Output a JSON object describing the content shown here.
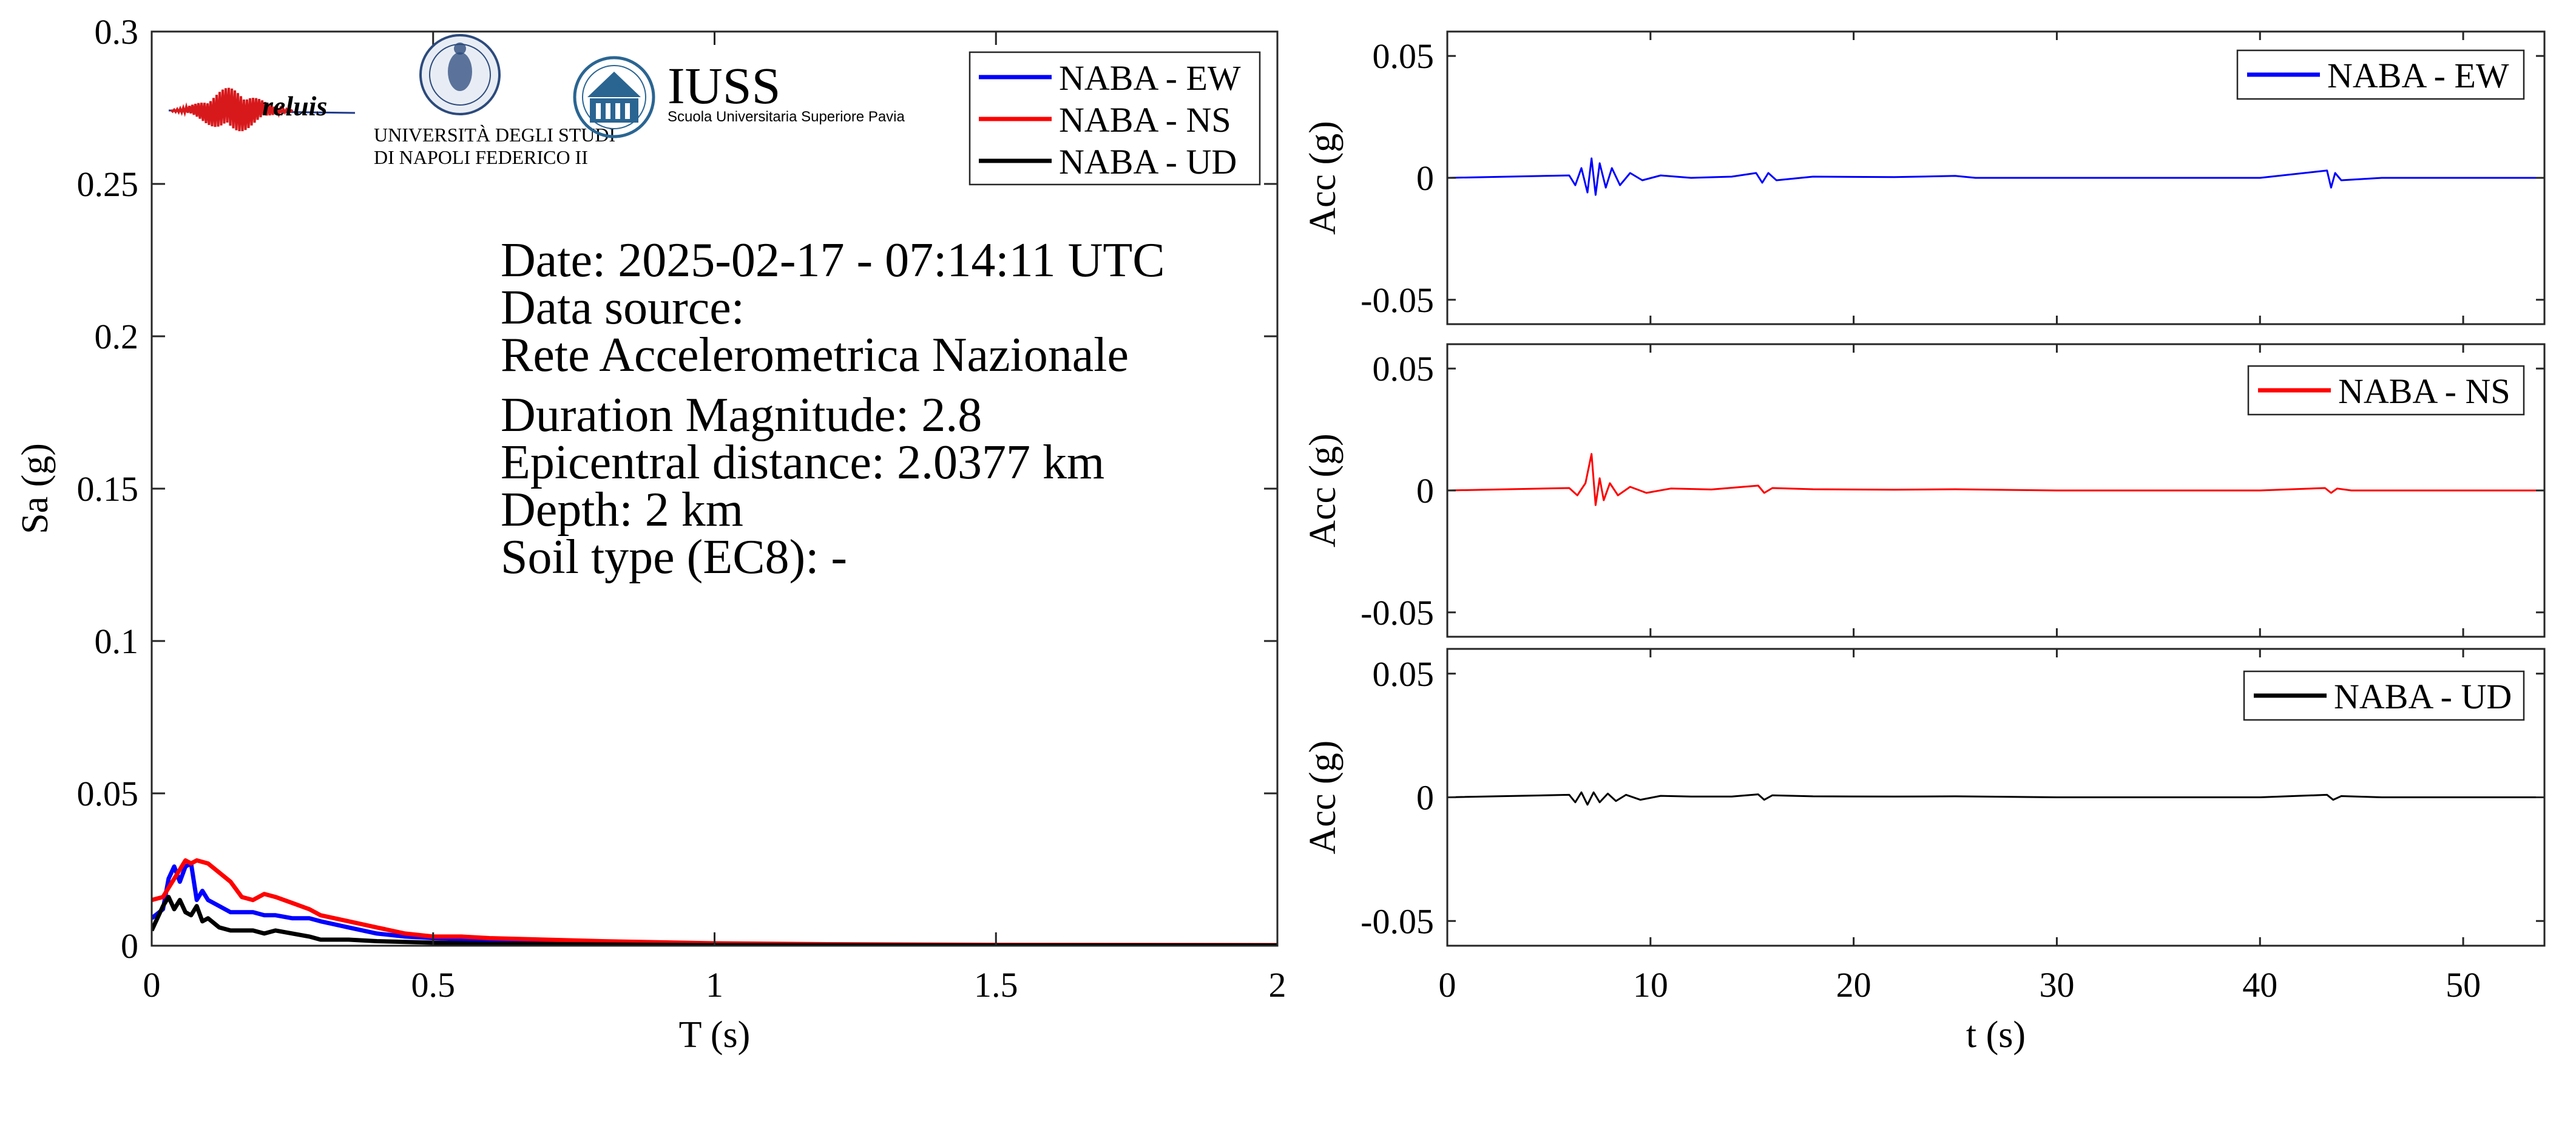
{
  "logos": {
    "reluis_text": "reluis",
    "unina_line1": "UNIVERSITÀ DEGLI STUDI",
    "unina_line2": "DI NAPOLI FEDERICO II",
    "iuss_title": "IUSS",
    "iuss_subtitle": "Scuola Universitaria Superiore Pavia",
    "colors": {
      "reluis_red": "#d7191c",
      "reluis_blue": "#1f3b8c",
      "unina_blue": "#2c4a7c",
      "iuss_blue": "#2a6592"
    }
  },
  "info": {
    "date": "Date: 2025-02-17 - 07:14:11 UTC",
    "source_label": "Data source:",
    "source_name": "Rete Accelerometrica Nazionale",
    "magnitude": "Duration Magnitude: 2.8",
    "distance": "Epicentral distance: 2.0377 km",
    "depth": "Depth: 2 km",
    "soil": "Soil type (EC8): -"
  },
  "chart_data": [
    {
      "id": "spectrum",
      "type": "line",
      "xlabel": "T (s)",
      "ylabel": "Sa (g)",
      "xlim": [
        0,
        2
      ],
      "ylim": [
        0,
        0.3
      ],
      "xticks": [
        0,
        0.5,
        1,
        1.5,
        2
      ],
      "xtick_labels": [
        "0",
        "0.5",
        "1",
        "1.5",
        "2"
      ],
      "yticks": [
        0,
        0.05,
        0.1,
        0.15,
        0.2,
        0.25,
        0.3
      ],
      "ytick_labels": [
        "0",
        "0.05",
        "0.1",
        "0.15",
        "0.2",
        "0.25",
        "0.3"
      ],
      "grid": false,
      "legend": "top-right",
      "series": [
        {
          "name": "NABA - EW",
          "color": "#0000ff",
          "x": [
            0,
            0.02,
            0.03,
            0.04,
            0.05,
            0.06,
            0.07,
            0.08,
            0.09,
            0.1,
            0.12,
            0.14,
            0.16,
            0.18,
            0.2,
            0.22,
            0.25,
            0.28,
            0.3,
            0.35,
            0.4,
            0.45,
            0.5,
            0.6,
            0.7,
            0.8,
            1.0,
            1.2,
            1.5,
            2.0
          ],
          "y": [
            0.009,
            0.012,
            0.022,
            0.026,
            0.021,
            0.026,
            0.027,
            0.015,
            0.018,
            0.015,
            0.013,
            0.011,
            0.011,
            0.011,
            0.01,
            0.01,
            0.009,
            0.009,
            0.008,
            0.006,
            0.004,
            0.003,
            0.0025,
            0.0018,
            0.0012,
            0.0009,
            0.0005,
            0.0003,
            0.0002,
            0.0001
          ]
        },
        {
          "name": "NABA - NS",
          "color": "#ff0000",
          "x": [
            0,
            0.02,
            0.03,
            0.04,
            0.05,
            0.06,
            0.07,
            0.08,
            0.1,
            0.12,
            0.14,
            0.16,
            0.18,
            0.2,
            0.22,
            0.25,
            0.28,
            0.3,
            0.35,
            0.4,
            0.45,
            0.5,
            0.55,
            0.6,
            0.7,
            0.8,
            1.0,
            1.2,
            1.5,
            2.0
          ],
          "y": [
            0.015,
            0.016,
            0.019,
            0.022,
            0.025,
            0.028,
            0.027,
            0.028,
            0.027,
            0.024,
            0.021,
            0.016,
            0.015,
            0.017,
            0.016,
            0.014,
            0.012,
            0.01,
            0.008,
            0.006,
            0.004,
            0.003,
            0.003,
            0.0025,
            0.002,
            0.0015,
            0.0008,
            0.0005,
            0.0003,
            0.0002
          ]
        },
        {
          "name": "NABA - UD",
          "color": "#000000",
          "x": [
            0,
            0.01,
            0.02,
            0.03,
            0.04,
            0.05,
            0.06,
            0.07,
            0.08,
            0.09,
            0.1,
            0.12,
            0.14,
            0.16,
            0.18,
            0.2,
            0.22,
            0.25,
            0.28,
            0.3,
            0.35,
            0.4,
            0.5,
            0.6,
            0.8,
            1.0,
            1.5,
            2.0
          ],
          "y": [
            0.005,
            0.009,
            0.013,
            0.016,
            0.012,
            0.015,
            0.011,
            0.01,
            0.013,
            0.008,
            0.009,
            0.006,
            0.005,
            0.005,
            0.005,
            0.004,
            0.005,
            0.004,
            0.003,
            0.002,
            0.002,
            0.0015,
            0.001,
            0.0007,
            0.0004,
            0.0002,
            0.0001,
            0.0001
          ]
        }
      ]
    },
    {
      "id": "ew",
      "type": "line",
      "xlabel": "",
      "ylabel": "Acc (g)",
      "xlim": [
        0,
        54
      ],
      "ylim": [
        -0.06,
        0.06
      ],
      "xticks": [
        0,
        10,
        20,
        30,
        40,
        50
      ],
      "xtick_labels": [],
      "yticks": [
        -0.05,
        0,
        0.05
      ],
      "ytick_labels": [
        "-0.05",
        "0",
        "0.05"
      ],
      "legend": "top-right",
      "series": [
        {
          "name": "NABA - EW",
          "color": "#0000ff",
          "x": [
            0,
            6.0,
            6.3,
            6.6,
            6.9,
            7.1,
            7.3,
            7.5,
            7.8,
            8.1,
            8.5,
            9.0,
            9.6,
            10.5,
            12,
            14,
            15.2,
            15.5,
            15.8,
            16.2,
            18,
            22,
            25,
            26,
            30,
            40,
            43.3,
            43.5,
            43.7,
            44,
            46,
            54
          ],
          "y": [
            0,
            0.001,
            -0.003,
            0.004,
            -0.006,
            0.008,
            -0.007,
            0.006,
            -0.004,
            0.004,
            -0.003,
            0.002,
            -0.001,
            0.001,
            0,
            0.0005,
            0.002,
            -0.002,
            0.002,
            -0.001,
            0.0005,
            0.0003,
            0.0008,
            0,
            0,
            0,
            0.003,
            -0.004,
            0.002,
            -0.001,
            0,
            0
          ]
        }
      ]
    },
    {
      "id": "ns",
      "type": "line",
      "xlabel": "",
      "ylabel": "Acc (g)",
      "xlim": [
        0,
        54
      ],
      "ylim": [
        -0.06,
        0.06
      ],
      "xticks": [
        0,
        10,
        20,
        30,
        40,
        50
      ],
      "xtick_labels": [],
      "yticks": [
        -0.05,
        0,
        0.05
      ],
      "ytick_labels": [
        "-0.05",
        "0",
        "0.05"
      ],
      "legend": "top-right",
      "series": [
        {
          "name": "NABA - NS",
          "color": "#ff0000",
          "x": [
            0,
            6.0,
            6.4,
            6.8,
            7.1,
            7.3,
            7.5,
            7.7,
            8.0,
            8.4,
            9.0,
            9.8,
            11,
            13,
            15.3,
            15.6,
            16,
            18,
            22,
            25,
            30,
            40,
            43.2,
            43.5,
            43.8,
            44.5,
            54
          ],
          "y": [
            0,
            0.001,
            -0.002,
            0.003,
            0.015,
            -0.006,
            0.005,
            -0.004,
            0.003,
            -0.002,
            0.0015,
            -0.001,
            0.0008,
            0.0004,
            0.002,
            -0.001,
            0.001,
            0.0005,
            0.0003,
            0.0005,
            0,
            0,
            0.001,
            -0.001,
            0.0008,
            0,
            0
          ]
        }
      ]
    },
    {
      "id": "ud",
      "type": "line",
      "xlabel": "t (s)",
      "ylabel": "Acc (g)",
      "xlim": [
        0,
        54
      ],
      "ylim": [
        -0.06,
        0.06
      ],
      "xticks": [
        0,
        10,
        20,
        30,
        40,
        50
      ],
      "xtick_labels": [
        "0",
        "10",
        "20",
        "30",
        "40",
        "50"
      ],
      "yticks": [
        -0.05,
        0,
        0.05
      ],
      "ytick_labels": [
        "-0.05",
        "0",
        "0.05"
      ],
      "legend": "top-right",
      "series": [
        {
          "name": "NABA - UD",
          "color": "#000000",
          "x": [
            0,
            6.0,
            6.3,
            6.6,
            6.9,
            7.2,
            7.5,
            7.9,
            8.3,
            8.8,
            9.5,
            10.5,
            12,
            14,
            15.3,
            15.6,
            16,
            18,
            22,
            25,
            30,
            40,
            43.3,
            43.6,
            44,
            46,
            54
          ],
          "y": [
            0,
            0.001,
            -0.002,
            0.002,
            -0.003,
            0.002,
            -0.002,
            0.0015,
            -0.0015,
            0.001,
            -0.001,
            0.0006,
            0.0003,
            0.0003,
            0.0012,
            -0.001,
            0.0008,
            0.0004,
            0.0003,
            0.0004,
            0,
            0,
            0.001,
            -0.001,
            0.0005,
            0,
            0
          ]
        }
      ]
    }
  ]
}
